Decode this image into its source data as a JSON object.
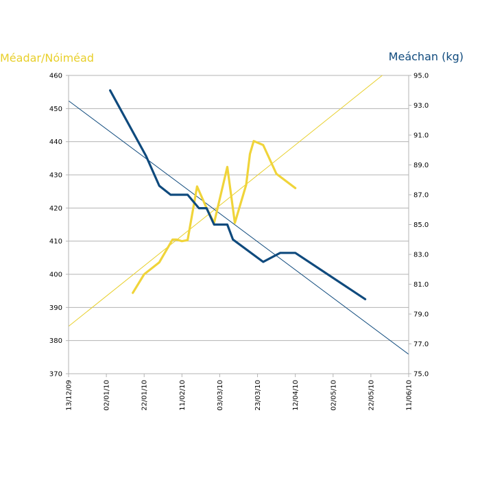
{
  "chart_data": {
    "type": "line",
    "left_axis_title": "Méadar/Nóiméad",
    "right_axis_title": "Meáchan (kg)",
    "left_axis_color": "#e8cf2a",
    "right_axis_color": "#0f4a7d",
    "left_ylim": [
      370,
      460
    ],
    "left_yticks": [
      "370",
      "380",
      "390",
      "400",
      "410",
      "420",
      "430",
      "440",
      "450",
      "460"
    ],
    "right_ylim": [
      75,
      95
    ],
    "right_yticks": [
      "75.0",
      "77.0",
      "79.0",
      "81.0",
      "83.0",
      "85.0",
      "87.0",
      "89.0",
      "91.0",
      "93.0",
      "95.0"
    ],
    "x_day_range": [
      0,
      180
    ],
    "x_ticks": [
      {
        "label": "13/12/09",
        "day": 0
      },
      {
        "label": "02/01/10",
        "day": 20
      },
      {
        "label": "22/01/10",
        "day": 40
      },
      {
        "label": "11/02/10",
        "day": 60
      },
      {
        "label": "03/03/10",
        "day": 80
      },
      {
        "label": "23/03/10",
        "day": 100
      },
      {
        "label": "12/04/10",
        "day": 120
      },
      {
        "label": "02/05/10",
        "day": 140
      },
      {
        "label": "22/05/10",
        "day": 160
      },
      {
        "label": "11/06/10",
        "day": 180
      }
    ],
    "grid": true,
    "series": [
      {
        "name": "Méadar/Nóiméad",
        "axis": "left",
        "color": "#f0d43a",
        "points": [
          [
            34,
            394.4
          ],
          [
            40,
            400
          ],
          [
            48,
            403.6
          ],
          [
            55,
            410.5
          ],
          [
            57,
            410.5
          ],
          [
            60,
            410
          ],
          [
            63,
            410.3
          ],
          [
            68,
            426.5
          ],
          [
            73,
            420
          ],
          [
            77,
            415.5
          ],
          [
            84,
            432.4
          ],
          [
            88,
            415.5
          ],
          [
            94,
            427
          ],
          [
            96,
            436.3
          ],
          [
            98,
            440.2
          ],
          [
            103,
            439
          ],
          [
            110,
            430.3
          ],
          [
            120,
            426
          ]
        ]
      },
      {
        "name": "Meáchan (kg)",
        "axis": "right",
        "color": "#0f4a7d",
        "points": [
          [
            22,
            94.0
          ],
          [
            41,
            89.6
          ],
          [
            48,
            87.6
          ],
          [
            54,
            87.0
          ],
          [
            63,
            87.0
          ],
          [
            69,
            86.1
          ],
          [
            73,
            86.1
          ],
          [
            77,
            85.0
          ],
          [
            84,
            85.0
          ],
          [
            87,
            84.0
          ],
          [
            103,
            82.5
          ],
          [
            112,
            83.1
          ],
          [
            120,
            83.1
          ],
          [
            157,
            80.0
          ]
        ]
      },
      {
        "name": "Méadar/Nóiméad trend",
        "axis": "left",
        "color": "#e8cf2a",
        "points": [
          [
            0,
            384.3
          ],
          [
            166,
            460
          ]
        ]
      },
      {
        "name": "Meáchan (kg) trend",
        "axis": "right",
        "color": "#0f4a7d",
        "points": [
          [
            0,
            93.3
          ],
          [
            180,
            76.3
          ]
        ]
      }
    ]
  }
}
